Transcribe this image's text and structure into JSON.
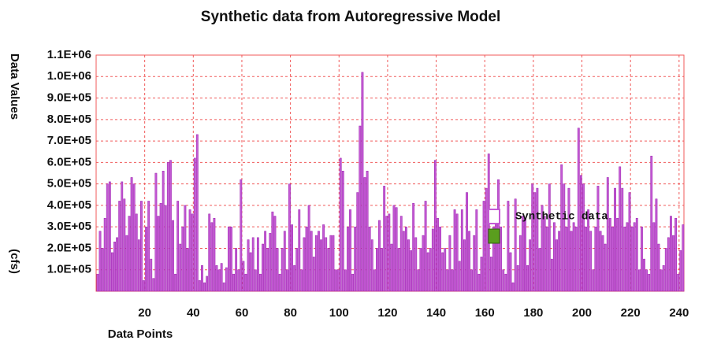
{
  "chart_data": {
    "type": "bar",
    "title": "Synthetic data from Autoregressive Model",
    "xlabel": "Data Points",
    "ylabel": "Data Values",
    "yunit": "(cfs)",
    "x": [
      1,
      2,
      3,
      4,
      5,
      6,
      7,
      8,
      9,
      10,
      11,
      12,
      13,
      14,
      15,
      16,
      17,
      18,
      19,
      20,
      21,
      22,
      23,
      24,
      25,
      26,
      27,
      28,
      29,
      30,
      31,
      32,
      33,
      34,
      35,
      36,
      37,
      38,
      39,
      40,
      41,
      42,
      43,
      44,
      45,
      46,
      47,
      48,
      49,
      50,
      51,
      52,
      53,
      54,
      55,
      56,
      57,
      58,
      59,
      60,
      61,
      62,
      63,
      64,
      65,
      66,
      67,
      68,
      69,
      70,
      71,
      72,
      73,
      74,
      75,
      76,
      77,
      78,
      79,
      80,
      81,
      82,
      83,
      84,
      85,
      86,
      87,
      88,
      89,
      90,
      91,
      92,
      93,
      94,
      95,
      96,
      97,
      98,
      99,
      100,
      101,
      102,
      103,
      104,
      105,
      106,
      107,
      108,
      109,
      110,
      111,
      112,
      113,
      114,
      115,
      116,
      117,
      118,
      119,
      120,
      121,
      122,
      123,
      124,
      125,
      126,
      127,
      128,
      129,
      130,
      131,
      132,
      133,
      134,
      135,
      136,
      137,
      138,
      139,
      140,
      141,
      142,
      143,
      144,
      145,
      146,
      147,
      148,
      149,
      150,
      151,
      152,
      153,
      154,
      155,
      156,
      157,
      158,
      159,
      160,
      161,
      162,
      163,
      164,
      165,
      166,
      167,
      168,
      169,
      170,
      171,
      172,
      173,
      174,
      175,
      176,
      177,
      178,
      179,
      180,
      181,
      182,
      183,
      184,
      185,
      186,
      187,
      188,
      189,
      190,
      191,
      192,
      193,
      194,
      195,
      196,
      197,
      198,
      199,
      200,
      201,
      202,
      203,
      204,
      205,
      206,
      207,
      208,
      209,
      210,
      211,
      212,
      213,
      214,
      215,
      216,
      217,
      218,
      219,
      220,
      221,
      222,
      223,
      224,
      225,
      226,
      227,
      228,
      229,
      230,
      231,
      232,
      233,
      234,
      235,
      236,
      237,
      238,
      239,
      240,
      241,
      242
    ],
    "series": [
      {
        "name": "Synthetic data",
        "color": "#c45ad4",
        "values": [
          80000,
          280000,
          200000,
          340000,
          500000,
          510000,
          180000,
          230000,
          250000,
          420000,
          510000,
          430000,
          260000,
          350000,
          530000,
          500000,
          360000,
          240000,
          420000,
          50000,
          300000,
          420000,
          150000,
          60000,
          550000,
          350000,
          410000,
          560000,
          400000,
          600000,
          610000,
          330000,
          80000,
          420000,
          220000,
          300000,
          400000,
          200000,
          380000,
          360000,
          620000,
          730000,
          50000,
          120000,
          40000,
          70000,
          360000,
          320000,
          340000,
          120000,
          100000,
          130000,
          40000,
          110000,
          300000,
          300000,
          80000,
          200000,
          100000,
          520000,
          140000,
          80000,
          240000,
          180000,
          250000,
          100000,
          250000,
          80000,
          220000,
          280000,
          200000,
          270000,
          370000,
          350000,
          200000,
          80000,
          200000,
          280000,
          100000,
          500000,
          310000,
          120000,
          200000,
          380000,
          100000,
          250000,
          300000,
          400000,
          280000,
          160000,
          260000,
          280000,
          240000,
          310000,
          250000,
          200000,
          260000,
          260000,
          100000,
          100000,
          620000,
          560000,
          100000,
          300000,
          380000,
          80000,
          300000,
          460000,
          770000,
          1020000,
          530000,
          560000,
          300000,
          240000,
          100000,
          200000,
          330000,
          200000,
          490000,
          350000,
          360000,
          220000,
          400000,
          390000,
          200000,
          350000,
          280000,
          300000,
          240000,
          190000,
          410000,
          250000,
          100000,
          200000,
          260000,
          420000,
          180000,
          200000,
          290000,
          610000,
          340000,
          300000,
          180000,
          200000,
          100000,
          260000,
          100000,
          380000,
          360000,
          140000,
          380000,
          240000,
          460000,
          280000,
          100000,
          260000,
          380000,
          80000,
          160000,
          420000,
          480000,
          640000,
          160000,
          300000,
          320000,
          520000,
          300000,
          100000,
          80000,
          420000,
          180000,
          40000,
          430000,
          120000,
          260000,
          350000,
          340000,
          120000,
          240000,
          500000,
          460000,
          480000,
          200000,
          400000,
          350000,
          300000,
          500000,
          150000,
          320000,
          240000,
          280000,
          590000,
          500000,
          300000,
          480000,
          280000,
          320000,
          300000,
          760000,
          540000,
          500000,
          300000,
          380000,
          280000,
          100000,
          300000,
          490000,
          280000,
          260000,
          220000,
          530000,
          340000,
          300000,
          480000,
          340000,
          580000,
          480000,
          300000,
          320000,
          460000,
          300000,
          320000,
          340000,
          100000,
          300000,
          150000,
          100000,
          80000,
          630000,
          320000,
          430000,
          220000,
          100000,
          120000,
          200000,
          250000,
          350000,
          260000,
          340000,
          80000,
          190000,
          310000
        ]
      }
    ],
    "xlim": [
      0,
      242
    ],
    "xticks": [
      20,
      40,
      60,
      80,
      100,
      120,
      140,
      160,
      180,
      200,
      220,
      240
    ],
    "ylim": [
      0,
      1100000
    ],
    "yticks": [
      {
        "value": 100000,
        "label": "1.0E+05"
      },
      {
        "value": 200000,
        "label": "2.0E+05"
      },
      {
        "value": 300000,
        "label": "3.0E+05"
      },
      {
        "value": 400000,
        "label": "4.0E+05"
      },
      {
        "value": 500000,
        "label": "5.0E+05"
      },
      {
        "value": 600000,
        "label": "6.0E+05"
      },
      {
        "value": 700000,
        "label": "7.0E+05"
      },
      {
        "value": 800000,
        "label": "8.0E+05"
      },
      {
        "value": 900000,
        "label": "9.0E+05"
      },
      {
        "value": 1000000,
        "label": "1.0E+06"
      },
      {
        "value": 1100000,
        "label": "1.1E+06"
      }
    ],
    "grid": true,
    "grid_color": "#f05a5a",
    "legend": "right"
  }
}
